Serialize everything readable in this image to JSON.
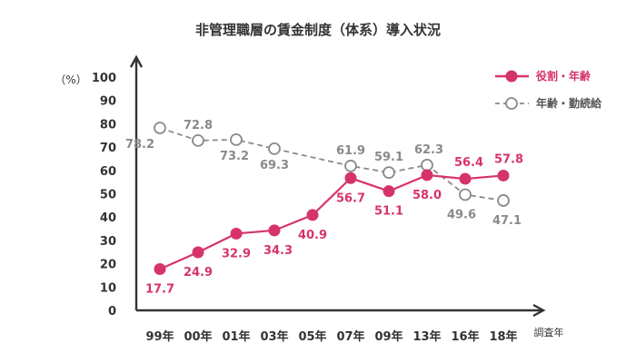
{
  "chart_data": {
    "type": "line",
    "title": "非管理職層の賃金制度（体系）導入状況",
    "ylabel": "（%）",
    "xlabel": "調査年",
    "ylim": [
      0,
      100
    ],
    "yticks": [
      0,
      10,
      20,
      30,
      40,
      50,
      60,
      70,
      80,
      90,
      100
    ],
    "categories": [
      "99年",
      "00年",
      "01年",
      "03年",
      "05年",
      "07年",
      "09年",
      "13年",
      "16年",
      "18年"
    ],
    "legend_position": "top-right",
    "grid": false,
    "series": [
      {
        "name": "役割・年齢",
        "color": "#d6336c",
        "marker": "filled-circle",
        "line": "solid",
        "values": [
          17.7,
          24.9,
          32.9,
          34.3,
          40.9,
          56.7,
          51.1,
          58.0,
          56.4,
          57.8
        ],
        "labels": [
          "17.7",
          "24.9",
          "32.9",
          "34.3",
          "40.9",
          "56.7",
          "51.1",
          "58.0",
          "56.4",
          "57.8"
        ]
      },
      {
        "name": "年齢・勤続給",
        "color": "#8a8a8a",
        "marker": "open-circle",
        "line": "dashed",
        "values": [
          78.2,
          72.8,
          73.2,
          69.3,
          null,
          61.9,
          59.1,
          62.3,
          49.6,
          47.1
        ],
        "labels": [
          "78.2",
          "72.8",
          "73.2",
          "69.3",
          null,
          "61.9",
          "59.1",
          "62.3",
          "49.6",
          "47.1"
        ]
      }
    ]
  }
}
